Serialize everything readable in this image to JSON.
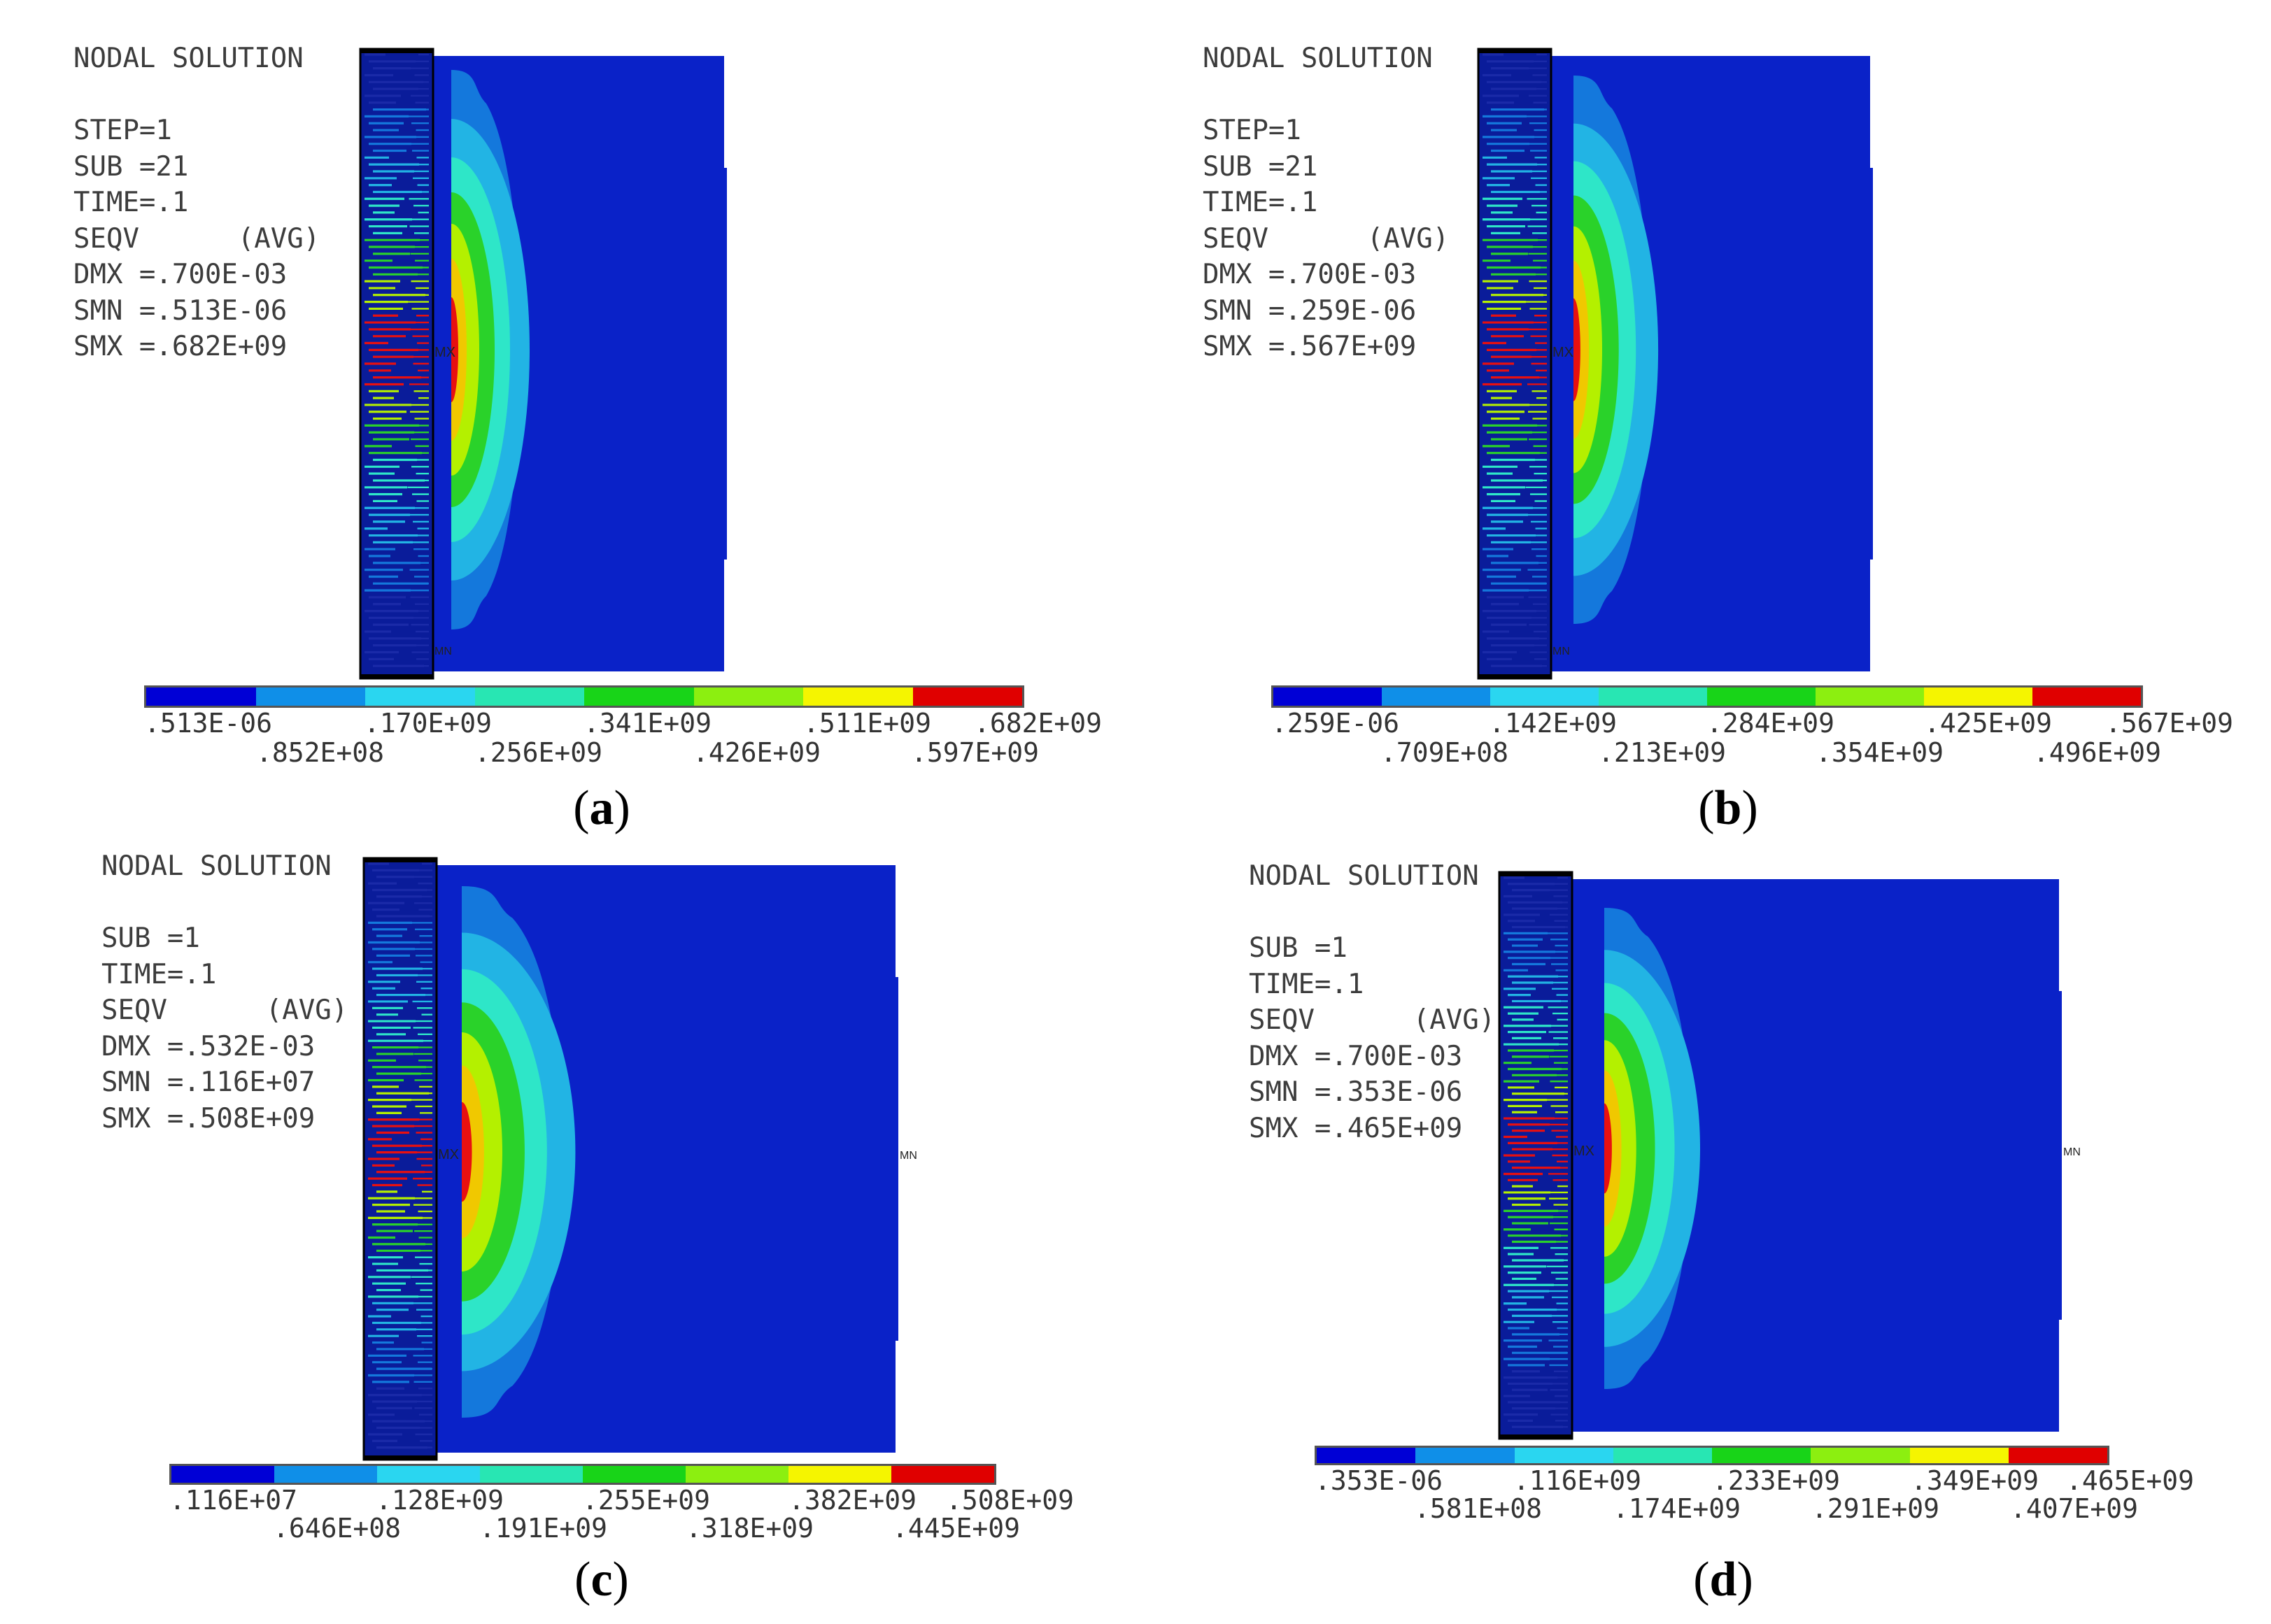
{
  "colorbar_colors": [
    "#0000d6",
    "#0f8fe8",
    "#2ad6f0",
    "#28e6b3",
    "#18d418",
    "#8cef10",
    "#f5f500",
    "#e00000"
  ],
  "contour_colors": [
    "#0a22c8",
    "#1478dc",
    "#22b4e4",
    "#2ee6c8",
    "#2ad22a",
    "#b4f000",
    "#f0c800",
    "#e81010"
  ],
  "panels": [
    {
      "caption_letter": "a",
      "info_lines": [
        "NODAL SOLUTION",
        "",
        "STEP=1",
        "SUB =21",
        "TIME=.1",
        "SEQV      (AVG)",
        "DMX =.700E-03",
        "SMN =.513E-06",
        "SMX =.682E+09"
      ],
      "labels_top": [
        ".513E-06",
        ".170E+09",
        ".341E+09",
        ".511E+09",
        ".682E+09"
      ],
      "labels_bottom": [
        ".852E+08",
        ".256E+09",
        ".426E+09",
        ".597E+09"
      ],
      "mx_label": "MX",
      "mn_label": "MN"
    },
    {
      "caption_letter": "b",
      "info_lines": [
        "NODAL SOLUTION",
        "",
        "STEP=1",
        "SUB =21",
        "TIME=.1",
        "SEQV      (AVG)",
        "DMX =.700E-03",
        "SMN =.259E-06",
        "SMX =.567E+09"
      ],
      "labels_top": [
        ".259E-06",
        ".142E+09",
        ".284E+09",
        ".425E+09",
        ".567E+09"
      ],
      "labels_bottom": [
        ".709E+08",
        ".213E+09",
        ".354E+09",
        ".496E+09"
      ],
      "mx_label": "MX",
      "mn_label": "MN"
    },
    {
      "caption_letter": "c",
      "info_lines": [
        "NODAL SOLUTION",
        "",
        "SUB =1",
        "TIME=.1",
        "SEQV      (AVG)",
        "DMX =.532E-03",
        "SMN =.116E+07",
        "SMX =.508E+09"
      ],
      "labels_top": [
        ".116E+07",
        ".128E+09",
        ".255E+09",
        ".382E+09",
        ".508E+09"
      ],
      "labels_bottom": [
        ".646E+08",
        ".191E+09",
        ".318E+09",
        ".445E+09"
      ],
      "mx_label": "MX",
      "mn_label": "MN"
    },
    {
      "caption_letter": "d",
      "info_lines": [
        "NODAL SOLUTION",
        "",
        "SUB =1",
        "TIME=.1",
        "SEQV      (AVG)",
        "DMX =.700E-03",
        "SMN =.353E-06",
        "SMX =.465E+09"
      ],
      "labels_top": [
        ".353E-06",
        ".116E+09",
        ".233E+09",
        ".349E+09",
        ".465E+09"
      ],
      "labels_bottom": [
        ".581E+08",
        ".174E+09",
        ".291E+09",
        ".407E+09"
      ],
      "mx_label": "MX",
      "mn_label": "MN"
    }
  ]
}
